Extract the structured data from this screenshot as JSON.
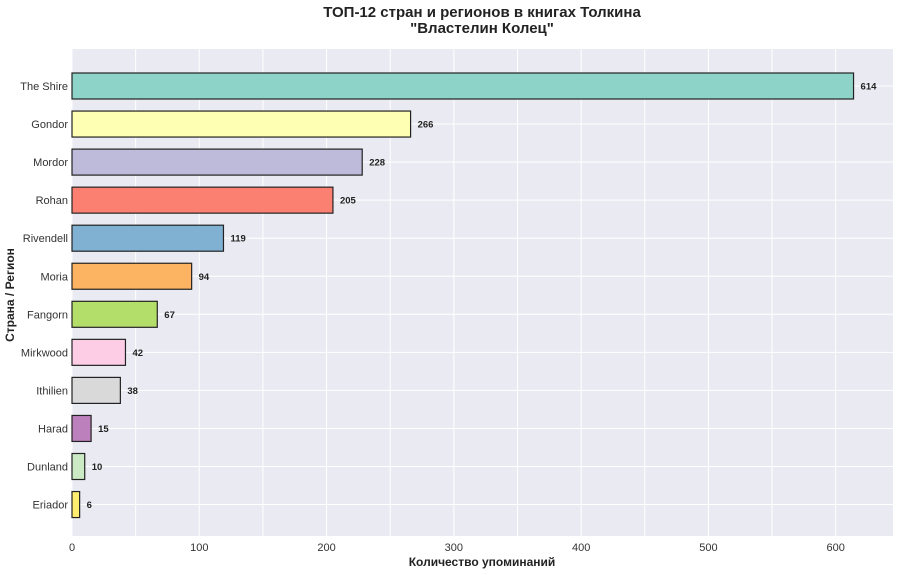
{
  "chart_data": {
    "type": "bar",
    "orientation": "horizontal",
    "title_lines": [
      "ТОП-12 стран и регионов в книгах Толкина",
      "\"Властелин Колец\""
    ],
    "xlabel": "Количество упоминаний",
    "ylabel": "Страна / Регион",
    "xlim": [
      0,
      645
    ],
    "xticks": [
      0,
      100,
      200,
      300,
      400,
      500,
      600
    ],
    "grid": true,
    "categories": [
      "The Shire",
      "Gondor",
      "Mordor",
      "Rohan",
      "Rivendell",
      "Moria",
      "Fangorn",
      "Mirkwood",
      "Ithilien",
      "Harad",
      "Dunland",
      "Eriador"
    ],
    "values": [
      614,
      266,
      228,
      205,
      119,
      94,
      67,
      42,
      38,
      15,
      10,
      6
    ],
    "colors": [
      "#8dd3c7",
      "#ffffb3",
      "#bebada",
      "#fb8072",
      "#80b1d3",
      "#fdb462",
      "#b3de69",
      "#fccde5",
      "#d9d9d9",
      "#bc80bd",
      "#ccebc5",
      "#ffed6f"
    ],
    "plot_background": "#eaeaf2"
  }
}
